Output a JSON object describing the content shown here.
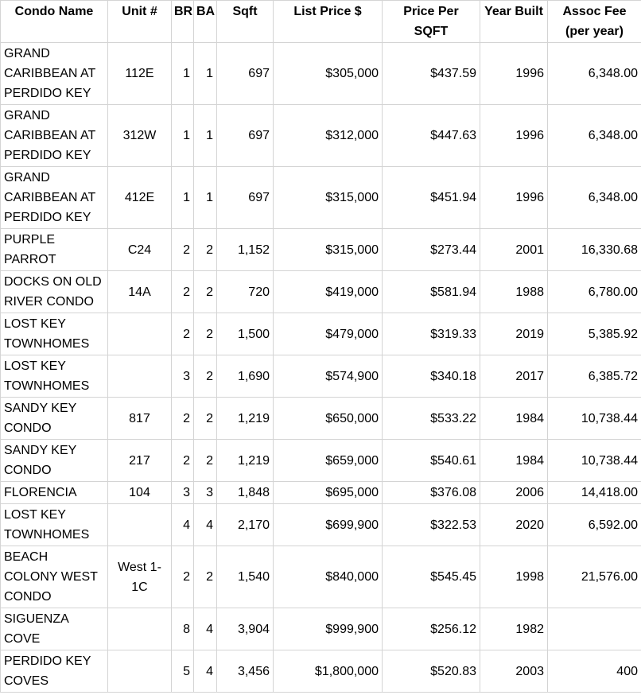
{
  "table": {
    "columns": [
      {
        "key": "condo_name",
        "label": "Condo Name",
        "align": "left"
      },
      {
        "key": "unit",
        "label": "Unit #",
        "align": "center"
      },
      {
        "key": "br",
        "label": "BR",
        "align": "right"
      },
      {
        "key": "ba",
        "label": "BA",
        "align": "right"
      },
      {
        "key": "sqft",
        "label": "Sqft",
        "align": "right"
      },
      {
        "key": "list_price",
        "label": "List Price $",
        "align": "right"
      },
      {
        "key": "price_per_sqft",
        "label": "Price Per SQFT",
        "align": "right"
      },
      {
        "key": "year_built",
        "label": "Year Built",
        "align": "right"
      },
      {
        "key": "assoc_fee",
        "label": "Assoc Fee (per year)",
        "align": "right"
      }
    ],
    "rows": [
      {
        "cells": [
          "GRAND CARIBBEAN AT PERDIDO KEY",
          "112E",
          "1",
          "1",
          "697",
          "$305,000",
          "$437.59",
          "1996",
          "6,348.00"
        ]
      },
      {
        "cells": [
          "GRAND CARIBBEAN AT PERDIDO KEY",
          "312W",
          "1",
          "1",
          "697",
          "$312,000",
          "$447.63",
          "1996",
          "6,348.00"
        ]
      },
      {
        "cells": [
          "GRAND CARIBBEAN AT PERDIDO KEY",
          "412E",
          "1",
          "1",
          "697",
          "$315,000",
          "$451.94",
          "1996",
          "6,348.00"
        ]
      },
      {
        "cells": [
          "PURPLE PARROT",
          "C24",
          "2",
          "2",
          "1,152",
          "$315,000",
          "$273.44",
          "2001",
          "16,330.68"
        ]
      },
      {
        "cells": [
          "DOCKS ON OLD RIVER CONDO",
          "14A",
          "2",
          "2",
          "720",
          "$419,000",
          "$581.94",
          "1988",
          "6,780.00"
        ]
      },
      {
        "cells": [
          "LOST KEY TOWNHOMES",
          "",
          "2",
          "2",
          "1,500",
          "$479,000",
          "$319.33",
          "2019",
          "5,385.92"
        ]
      },
      {
        "cells": [
          "LOST KEY TOWNHOMES",
          "",
          "3",
          "2",
          "1,690",
          "$574,900",
          "$340.18",
          "2017",
          "6,385.72"
        ]
      },
      {
        "cells": [
          "SANDY KEY CONDO",
          "817",
          "2",
          "2",
          "1,219",
          "$650,000",
          "$533.22",
          "1984",
          "10,738.44"
        ]
      },
      {
        "cells": [
          "SANDY KEY CONDO",
          "217",
          "2",
          "2",
          "1,219",
          "$659,000",
          "$540.61",
          "1984",
          "10,738.44"
        ]
      },
      {
        "cells": [
          "FLORENCIA",
          "104",
          "3",
          "3",
          "1,848",
          "$695,000",
          "$376.08",
          "2006",
          "14,418.00"
        ]
      },
      {
        "cells": [
          "LOST KEY TOWNHOMES",
          "",
          "4",
          "4",
          "2,170",
          "$699,900",
          "$322.53",
          "2020",
          "6,592.00"
        ]
      },
      {
        "cells": [
          "BEACH COLONY WEST CONDO",
          "West 1-1C",
          "2",
          "2",
          "1,540",
          "$840,000",
          "$545.45",
          "1998",
          "21,576.00"
        ]
      },
      {
        "cells": [
          "SIGUENZA COVE",
          "",
          "8",
          "4",
          "3,904",
          "$999,900",
          "$256.12",
          "1982",
          ""
        ]
      },
      {
        "cells": [
          "PERDIDO KEY COVES",
          "",
          "5",
          "4",
          "3,456",
          "$1,800,000",
          "$520.83",
          "2003",
          "400"
        ]
      }
    ]
  },
  "colors": {
    "gridline": "#d4d4d4",
    "text": "#000000",
    "background": "#ffffff"
  }
}
